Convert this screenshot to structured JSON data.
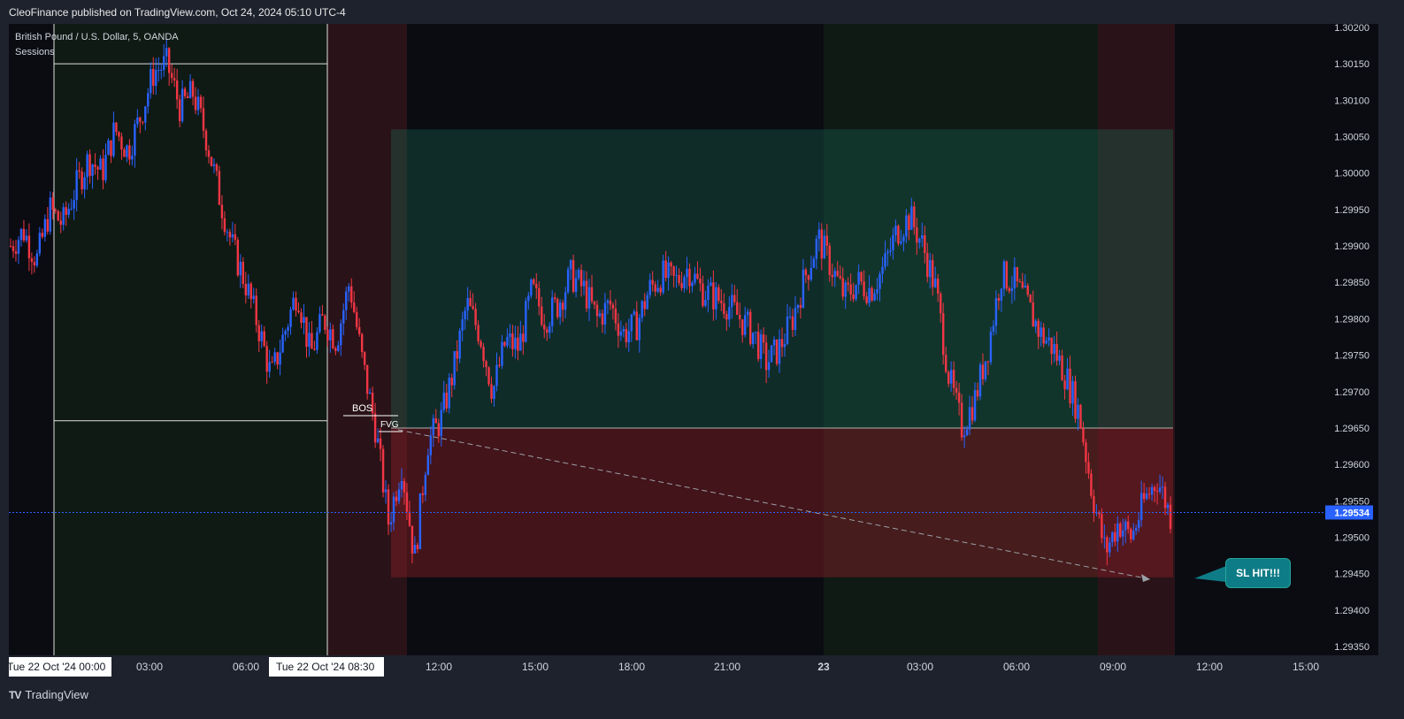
{
  "header": {
    "published": "CleoFinance published on TradingView.com, Oct 24, 2024 05:10 UTC-4"
  },
  "legend": {
    "symbol": "British Pound / U.S. Dollar, 5, OANDA",
    "indicator": "Sessions"
  },
  "footer": {
    "brand": "TradingView",
    "brand_mark": "TV"
  },
  "annotations": {
    "bos": "BOS",
    "fvg": "FVG",
    "sl_hit": "SL HIT!!!"
  },
  "colors": {
    "bull": "#2962ff",
    "bear": "#f23645",
    "price_line": "#2962ff",
    "price_badge": "#2962ff",
    "callout": "#0e7c86",
    "asia_session": "#1b3a2a",
    "london_session": "#3a1b22"
  },
  "chart_data": {
    "type": "candlestick",
    "price_axis": {
      "min": 1.2935,
      "max": 1.302,
      "ticks": [
        "1.30200",
        "1.30150",
        "1.30100",
        "1.30050",
        "1.30000",
        "1.29950",
        "1.29900",
        "1.29850",
        "1.29800",
        "1.29750",
        "1.29700",
        "1.29650",
        "1.29600",
        "1.29550",
        "1.29500",
        "1.29450",
        "1.29400",
        "1.29350"
      ],
      "current_price": "1.29534"
    },
    "time_axis": {
      "ticks": [
        "03:00",
        "06:00",
        "12:00",
        "15:00",
        "18:00",
        "21:00",
        "23",
        "03:00",
        "06:00",
        "09:00",
        "12:00",
        "15:00"
      ],
      "badges": [
        "Tue 22 Oct '24  00:00",
        "Tue 22 Oct '24  08:30"
      ]
    },
    "position": {
      "entry": 1.2965,
      "take_profit": 1.3006,
      "stop_loss": 1.29445
    },
    "range_box": {
      "high": 1.3015,
      "low": 1.2966
    },
    "series_path": [
      1.299,
      1.2992,
      1.2988,
      1.2995,
      1.2993,
      1.2998,
      1.3002,
      1.3,
      1.3006,
      1.3003,
      1.3008,
      1.3014,
      1.3015,
      1.3009,
      1.3011,
      1.3005,
      1.2997,
      1.299,
      1.2985,
      1.2979,
      1.2972,
      1.2978,
      1.2984,
      1.2975,
      1.298,
      1.2977,
      1.2985,
      1.2974,
      1.2965,
      1.2952,
      1.296,
      1.2947,
      1.2963,
      1.2966,
      1.2973,
      1.2982,
      1.2978,
      1.297,
      1.2977,
      1.2976,
      1.2984,
      1.298,
      1.2982,
      1.2986,
      1.2984,
      1.298,
      1.2982,
      1.2978,
      1.2979,
      1.2984,
      1.2986,
      1.2985,
      1.2987,
      1.2984,
      1.2983,
      1.2982,
      1.298,
      1.2978,
      1.2974,
      1.2976,
      1.298,
      1.2986,
      1.2991,
      1.2987,
      1.2983,
      1.2985,
      1.2984,
      1.2987,
      1.2992,
      1.2994,
      1.299,
      1.2984,
      1.2972,
      1.2965,
      1.2969,
      1.2976,
      1.2986,
      1.2985,
      1.2982,
      1.2978,
      1.2976,
      1.2972,
      1.2967,
      1.2956,
      1.2948,
      1.2952,
      1.295,
      1.2955,
      1.2958,
      1.2953
    ]
  }
}
